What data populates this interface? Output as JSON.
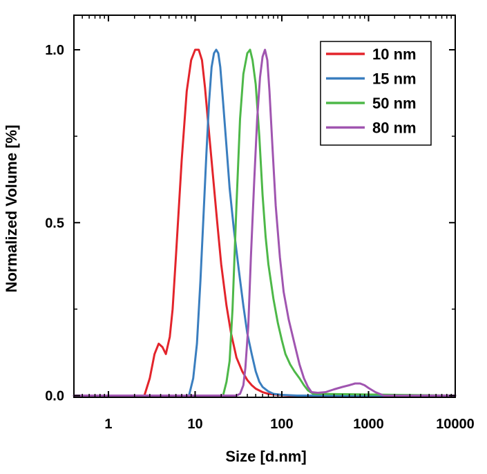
{
  "chart_data": {
    "type": "line",
    "xlabel": "Size [d.nm]",
    "ylabel": "Normalized Volume [%]",
    "xscale": "log",
    "xlim": [
      0.4,
      10000
    ],
    "ylim": [
      -0.005,
      1.1
    ],
    "xticks": [
      1,
      10,
      100,
      1000,
      10000
    ],
    "xtick_labels": [
      "1",
      "10",
      "100",
      "1000",
      "10000"
    ],
    "yticks": [
      0.0,
      0.5,
      1.0
    ],
    "ytick_labels": [
      "0.0",
      "0.5",
      "1.0"
    ],
    "grid": false,
    "legend_position": "top-right",
    "series": [
      {
        "name": "10 nm",
        "color": "#e3242b",
        "x": [
          0.4,
          2.6,
          3.0,
          3.4,
          3.8,
          4.2,
          4.6,
          5.1,
          5.5,
          6.0,
          7.0,
          8.0,
          9.0,
          10.0,
          11.0,
          12.0,
          13.0,
          14.0,
          16.0,
          18.0,
          20.0,
          23.0,
          26.0,
          30.0,
          35.0,
          40.0,
          45.0,
          50.0,
          60.0,
          70.0,
          90.0,
          120.0,
          10000
        ],
        "y": [
          0.0,
          0.0,
          0.05,
          0.12,
          0.15,
          0.14,
          0.12,
          0.17,
          0.25,
          0.4,
          0.68,
          0.88,
          0.97,
          1.0,
          1.0,
          0.97,
          0.89,
          0.8,
          0.64,
          0.5,
          0.38,
          0.26,
          0.18,
          0.11,
          0.07,
          0.045,
          0.03,
          0.02,
          0.01,
          0.005,
          0.002,
          0.0,
          0.0
        ]
      },
      {
        "name": "15 nm",
        "color": "#3a7ebf",
        "x": [
          0.4,
          8.5,
          9.5,
          10.5,
          11.5,
          12.5,
          13.5,
          14.5,
          15.5,
          16.5,
          17.5,
          18.5,
          19.5,
          21.0,
          23.0,
          25.0,
          28.0,
          32.0,
          36.0,
          40.0,
          45.0,
          50.0,
          55.0,
          60.0,
          70.0,
          80.0,
          100.0,
          150.0,
          10000
        ],
        "y": [
          0.0,
          0.0,
          0.05,
          0.15,
          0.33,
          0.52,
          0.7,
          0.85,
          0.95,
          0.99,
          1.0,
          0.99,
          0.95,
          0.85,
          0.72,
          0.6,
          0.48,
          0.36,
          0.26,
          0.18,
          0.12,
          0.07,
          0.04,
          0.025,
          0.012,
          0.005,
          0.002,
          0.0,
          0.0
        ]
      },
      {
        "name": "50 nm",
        "color": "#4db848",
        "x": [
          0.4,
          21.0,
          23.0,
          25.0,
          27.0,
          30.0,
          33.0,
          36.0,
          40.0,
          43.0,
          46.0,
          50.0,
          55.0,
          60.0,
          65.0,
          70.0,
          80.0,
          90.0,
          100.0,
          110.0,
          125.0,
          140.0,
          160.0,
          180.0,
          200.0,
          230.0,
          10000
        ],
        "y": [
          0.0,
          0.0,
          0.04,
          0.1,
          0.25,
          0.55,
          0.8,
          0.93,
          0.99,
          1.0,
          0.97,
          0.9,
          0.75,
          0.58,
          0.46,
          0.38,
          0.28,
          0.21,
          0.16,
          0.12,
          0.09,
          0.07,
          0.05,
          0.03,
          0.015,
          0.005,
          0.0
        ]
      },
      {
        "name": "80 nm",
        "color": "#a055b0",
        "x": [
          0.4,
          30.0,
          33.0,
          36.0,
          38.0,
          41.0,
          44.0,
          48.0,
          52.0,
          56.0,
          60.0,
          64.0,
          68.0,
          72.0,
          78.0,
          85.0,
          95.0,
          105.0,
          120.0,
          140.0,
          160.0,
          180.0,
          200.0,
          220.0,
          260.0,
          320.0,
          400.0,
          500.0,
          600.0,
          700.0,
          800.0,
          900.0,
          1000.0,
          1200.0,
          1500.0,
          10000
        ],
        "y": [
          0.0,
          0.0,
          0.005,
          0.03,
          0.08,
          0.2,
          0.4,
          0.62,
          0.8,
          0.92,
          0.98,
          1.0,
          0.97,
          0.88,
          0.72,
          0.55,
          0.4,
          0.3,
          0.22,
          0.15,
          0.09,
          0.05,
          0.025,
          0.01,
          0.008,
          0.01,
          0.018,
          0.025,
          0.03,
          0.035,
          0.035,
          0.03,
          0.022,
          0.01,
          0.0,
          0.0
        ]
      }
    ]
  }
}
